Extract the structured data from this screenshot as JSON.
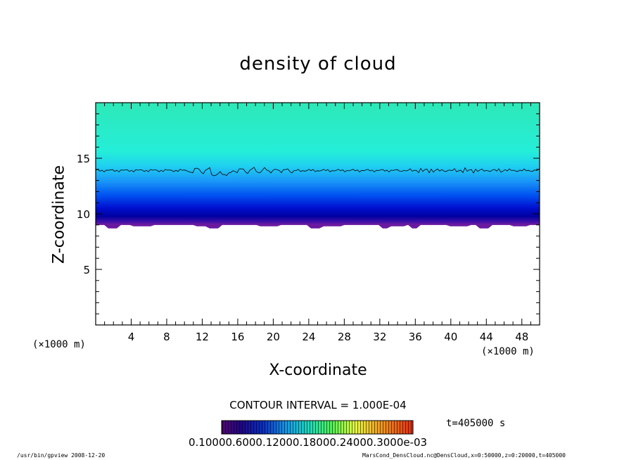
{
  "chart_data": {
    "type": "heatmap",
    "title": "density of cloud",
    "xlabel": "X-coordinate",
    "ylabel": "Z-coordinate",
    "x_unit_left": "(×1000 m)",
    "x_unit_right": "(×1000 m)",
    "xlim": [
      0,
      50
    ],
    "ylim": [
      0,
      20
    ],
    "xticks": [
      4,
      8,
      12,
      16,
      20,
      24,
      28,
      32,
      36,
      40,
      44,
      48
    ],
    "yticks": [
      5,
      10,
      15
    ],
    "cloud_base_z": 9.0,
    "contour_line_z": 13.9,
    "contour_interval": "CONTOUR INTERVAL = 1.000E-04",
    "time": "t=405000 s",
    "colorbar_labels": "0.10000.6000.12000.18000.24000.3000e-03",
    "colors": {
      "low": "#7a1fa8",
      "mid_low": "#0a0aa8",
      "mid": "#1f8fff",
      "high": "#2ff0c8",
      "top": "#34ecb0",
      "background": "#ffffff"
    }
  },
  "footer": {
    "left": "/usr/bin/gpview   2008-12-20",
    "right": "MarsCond_DensCloud.nc@DensCloud,x=0:50000,z=0:20000,t=405000"
  }
}
